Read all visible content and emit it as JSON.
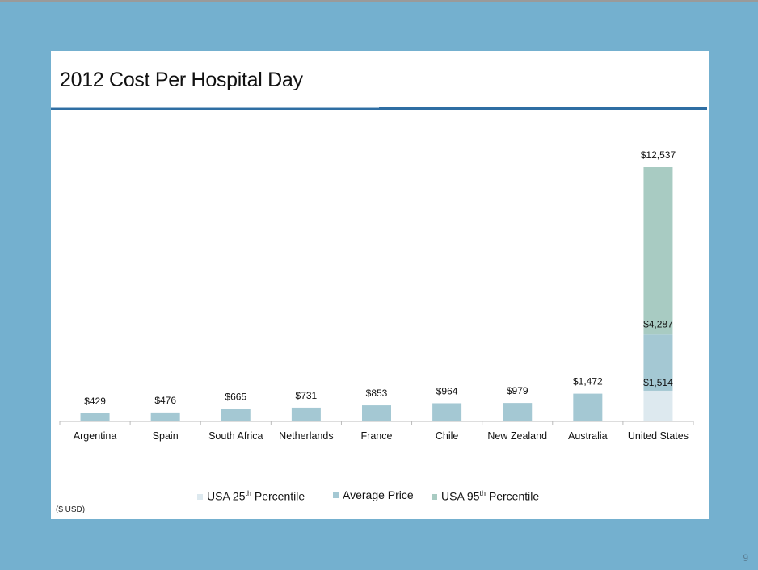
{
  "slide": {
    "title": "2012 Cost Per Hospital Day",
    "units_note": "($ USD)",
    "page_number": "9"
  },
  "colors": {
    "background": "#74b0cf",
    "rule": "#2f6ea3",
    "usa_25th": "#dde9ef",
    "average": "#a4c8d3",
    "usa_95th": "#a8cbc2"
  },
  "legend": {
    "items": [
      {
        "prefix": "USA 25",
        "sup": "th",
        "suffix": " Percentile",
        "color_key": "usa_25th"
      },
      {
        "prefix": "Average Price",
        "sup": "",
        "suffix": "",
        "color_key": "average"
      },
      {
        "prefix": "USA  95",
        "sup": "th",
        "suffix": " Percentile",
        "color_key": "usa_95th"
      }
    ]
  },
  "chart_data": {
    "type": "bar",
    "title": "2012 Cost Per Hospital Day",
    "categories": [
      "Argentina",
      "Spain",
      "South Africa",
      "Netherlands",
      "France",
      "Chile",
      "New Zealand",
      "Australia",
      "United States"
    ],
    "series": [
      {
        "name": "Average Price",
        "values": [
          429,
          476,
          665,
          731,
          853,
          964,
          979,
          1472,
          4287
        ]
      }
    ],
    "value_labels": [
      "$429",
      "$476",
      "$665",
      "$731",
      "$853",
      "$964",
      "$979",
      "$1,472",
      "$4,287"
    ],
    "usa_range": {
      "category": "United States",
      "p25": 1514,
      "p25_label": "$1,514",
      "average": 4287,
      "p95": 12537,
      "p95_label": "$12,537"
    },
    "xlabel": "",
    "ylabel": "",
    "ylim": [
      0,
      13000
    ],
    "grid": false,
    "legend_position": "bottom"
  }
}
